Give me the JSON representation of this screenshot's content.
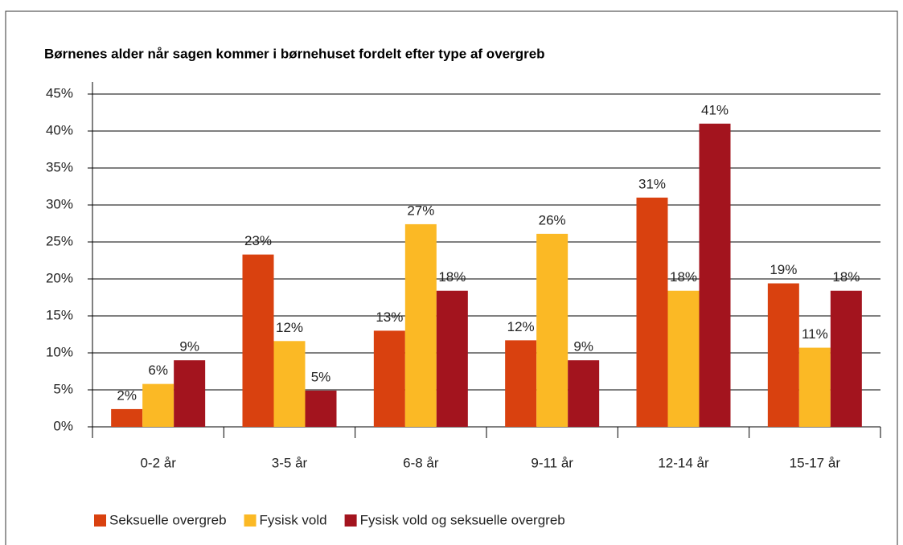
{
  "chart_data": {
    "type": "bar",
    "title": "Børnenes alder når sagen kommer i børnehuset fordelt efter type af overgreb",
    "categories": [
      "0-2 år",
      "3-5 år",
      "6-8 år",
      "9-11 år",
      "12-14 år",
      "15-17 år"
    ],
    "series": [
      {
        "name": "Seksuelle overgreb",
        "color": "#d9410f",
        "values": [
          2.4,
          23.3,
          13.0,
          11.7,
          31.0,
          19.4
        ],
        "value_labels": [
          "2%",
          "23%",
          "13%",
          "12%",
          "31%",
          "19%"
        ]
      },
      {
        "name": "Fysisk vold",
        "color": "#fbb925",
        "values": [
          5.8,
          11.6,
          27.4,
          26.1,
          18.4,
          10.7
        ],
        "value_labels": [
          "6%",
          "12%",
          "27%",
          "26%",
          "18%",
          "11%"
        ]
      },
      {
        "name": "Fysisk vold og seksuelle overgreb",
        "color": "#a3141e",
        "values": [
          9.0,
          4.9,
          18.4,
          9.0,
          41.0,
          18.4
        ],
        "value_labels": [
          "9%",
          "5%",
          "18%",
          "9%",
          "41%",
          "18%"
        ]
      }
    ],
    "ylim": [
      0,
      45
    ],
    "yticks": [
      {
        "value": 0,
        "label": "0%"
      },
      {
        "value": 5,
        "label": "5%"
      },
      {
        "value": 10,
        "label": "10%"
      },
      {
        "value": 15,
        "label": "15%"
      },
      {
        "value": 20,
        "label": "20%"
      },
      {
        "value": 25,
        "label": "25%"
      },
      {
        "value": 30,
        "label": "30%"
      },
      {
        "value": 35,
        "label": "35%"
      },
      {
        "value": 40,
        "label": "40%"
      },
      {
        "value": 45,
        "label": "45%"
      }
    ],
    "grid": true,
    "legend": "bottom"
  }
}
